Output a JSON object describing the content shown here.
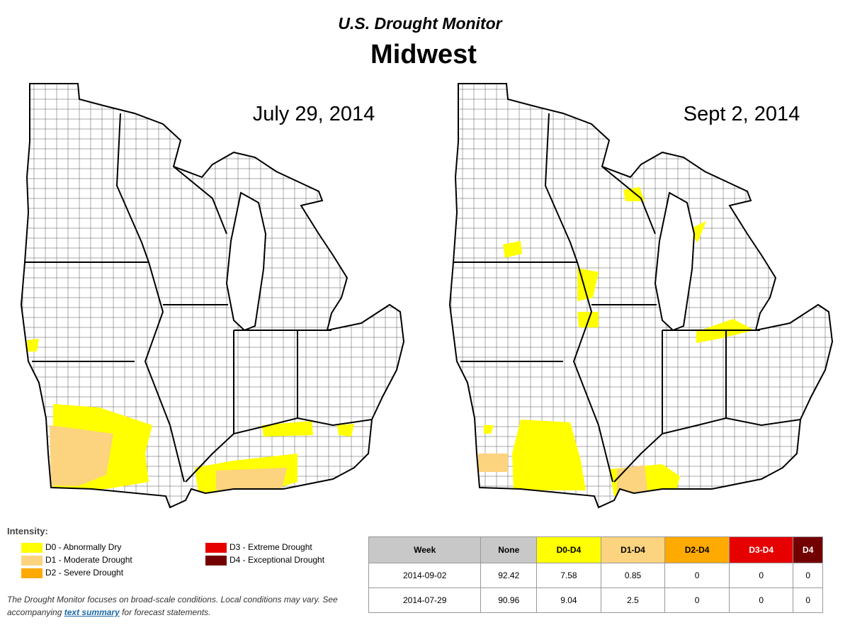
{
  "header": {
    "title": "U.S. Drought Monitor",
    "subtitle": "Midwest"
  },
  "maps": [
    {
      "label": "July 29, 2014"
    },
    {
      "label": "Sept 2, 2014"
    }
  ],
  "legend": {
    "title": "Intensity:",
    "items": [
      {
        "label": "D0 - Abnormally Dry",
        "color": "#ffff00"
      },
      {
        "label": "D1 - Moderate Drought",
        "color": "#fcd37f"
      },
      {
        "label": "D2 - Severe Drought",
        "color": "#ffaa00"
      },
      {
        "label": "D3 - Extreme Drought",
        "color": "#e60000"
      },
      {
        "label": "D4 - Exceptional Drought",
        "color": "#730000"
      }
    ]
  },
  "note": {
    "text_before": "The Drought Monitor focuses on broad-scale conditions. Local conditions may vary. See accompanying ",
    "link": "text summary",
    "text_after": " for forecast statements."
  },
  "table": {
    "columns": [
      "Week",
      "None",
      "D0-D4",
      "D1-D4",
      "D2-D4",
      "D3-D4",
      "D4"
    ],
    "rows": [
      [
        "2014-09-02",
        92.42,
        7.58,
        0.85,
        0,
        0,
        0
      ],
      [
        "2014-07-29",
        90.96,
        9.04,
        2.5,
        0,
        0,
        0
      ]
    ]
  }
}
